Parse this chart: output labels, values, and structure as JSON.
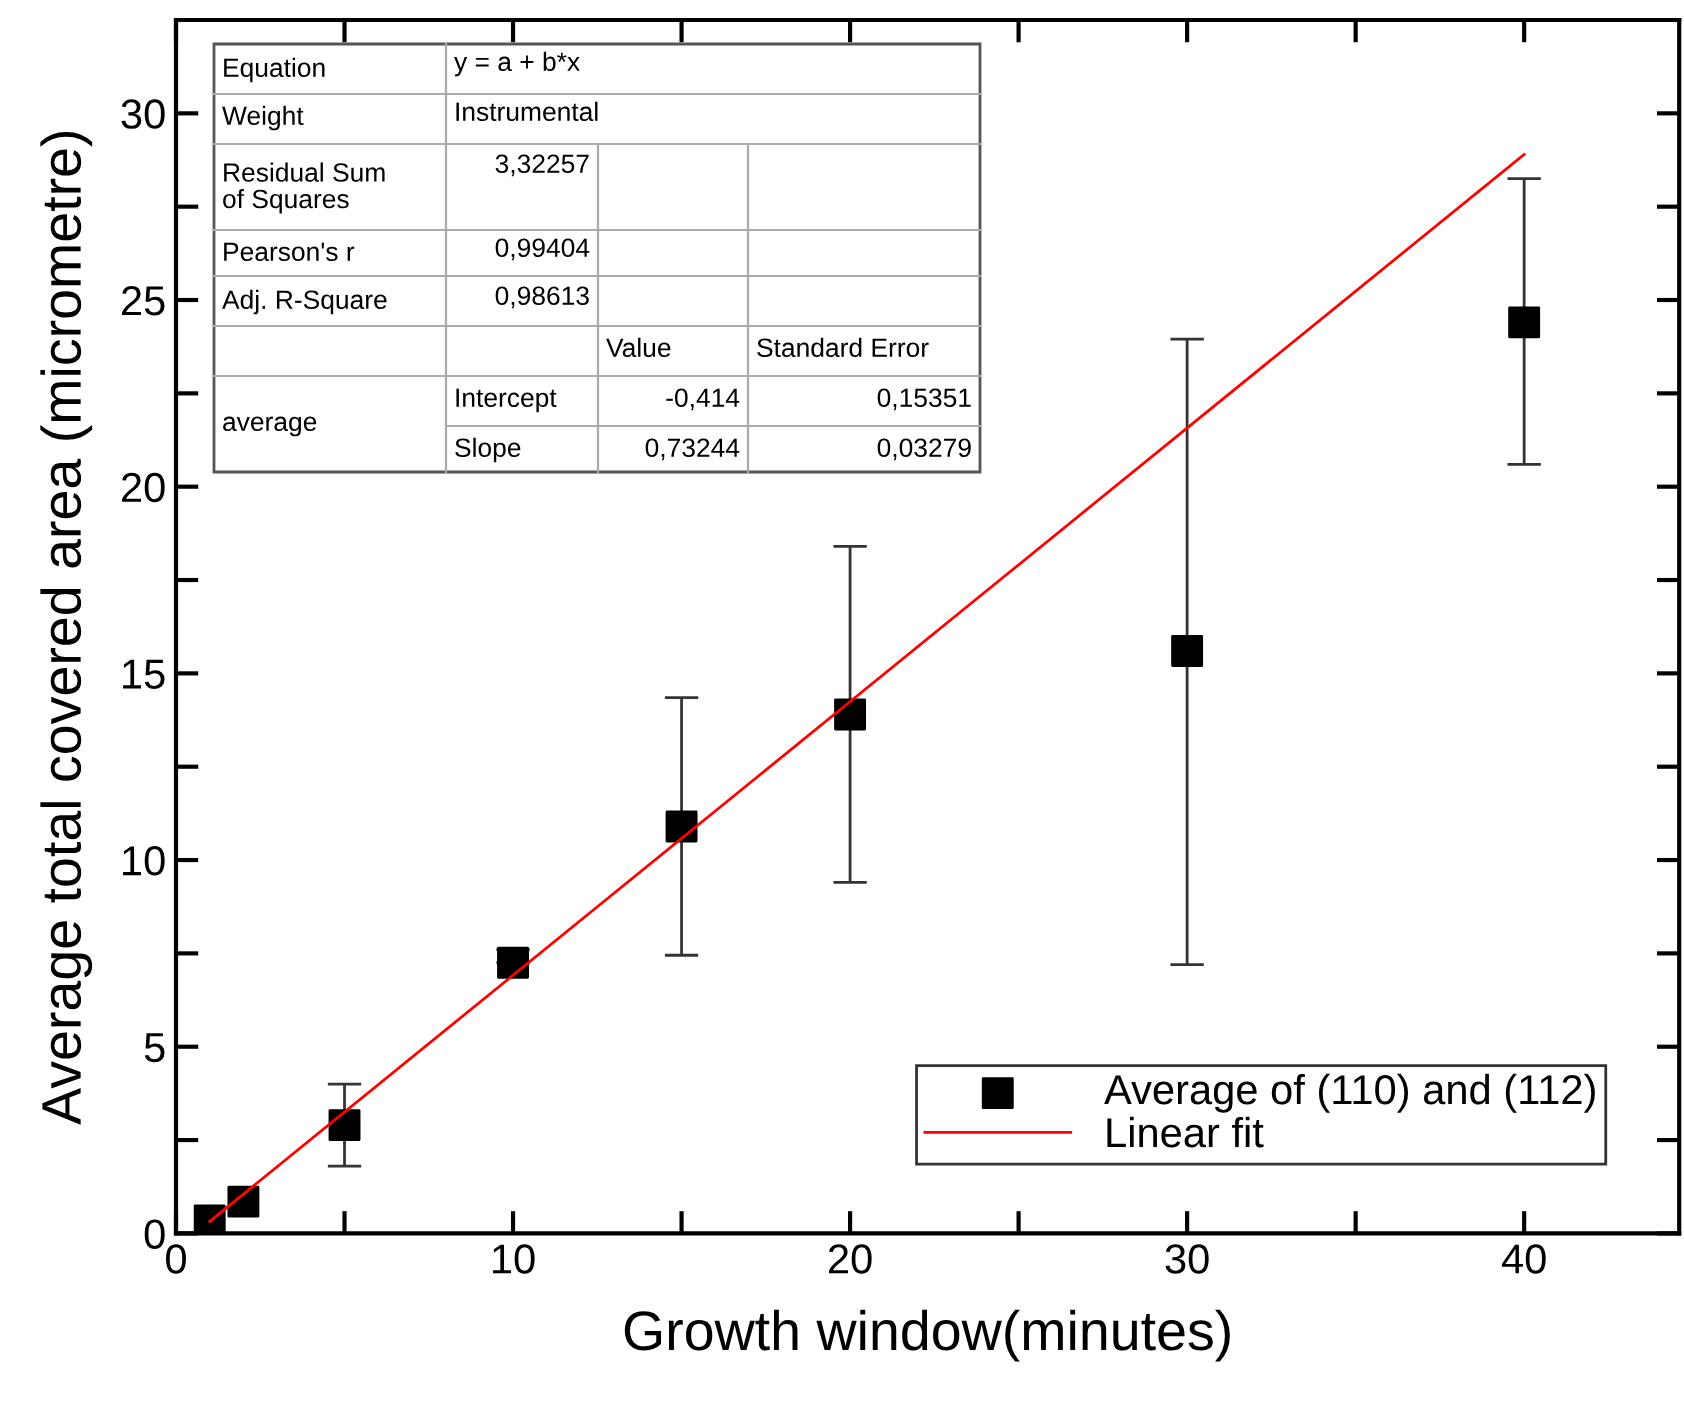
{
  "chart_data": {
    "type": "scatter",
    "xlabel": "Growth window(minutes)",
    "ylabel": "Average total covered area (micrometre)",
    "xlim": [
      0,
      44.6
    ],
    "ylim": [
      0,
      32.5
    ],
    "xticks": [
      0,
      {
        "value": 5,
        "label": null
      },
      10,
      {
        "value": 15,
        "label": null
      },
      20,
      {
        "value": 25,
        "label": null
      },
      30,
      {
        "value": 35,
        "label": null
      },
      40
    ],
    "yticks": [
      0,
      {
        "value": 2.5,
        "label": null
      },
      5,
      {
        "value": 7.5,
        "label": null
      },
      10,
      {
        "value": 12.5,
        "label": null
      },
      15,
      {
        "value": 17.5,
        "label": null
      },
      20,
      {
        "value": 22.5,
        "label": null
      },
      25,
      {
        "value": 27.5,
        "label": null
      },
      30
    ],
    "series": [
      {
        "name": "Average of (110) and (112)",
        "color": "#000000",
        "marker": "square",
        "x": [
          1,
          2,
          5,
          10,
          15,
          20,
          30,
          40
        ],
        "values": [
          0.35,
          0.85,
          2.9,
          7.25,
          10.9,
          13.9,
          15.6,
          24.4
        ],
        "errors": [
          null,
          null,
          [
            1.8,
            4.0
          ],
          [
            7.25,
            7.6
          ],
          [
            7.45,
            14.35
          ],
          [
            9.4,
            18.4
          ],
          [
            7.2,
            23.95
          ],
          [
            20.6,
            28.25
          ]
        ]
      },
      {
        "name": "Linear fit",
        "type": "line",
        "color": "#ff0000",
        "line_style": "solid",
        "x": [
          1,
          40
        ],
        "values": [
          0.32,
          28.9
        ]
      }
    ],
    "legend": "bottom right",
    "grid": false,
    "annotations": [
      "Equation",
      "y = a + b*x",
      "Weight",
      "Instrumental",
      "Residual Sum\nof Squares",
      "3,32257",
      "Pearson's r",
      "0,99404",
      "Adj. R-Square",
      "0,98613",
      "Value",
      "Standard Error",
      "average",
      "Intercept",
      "-0,414",
      "0,15351",
      "Slope",
      "0,73244",
      "0,03279"
    ]
  }
}
